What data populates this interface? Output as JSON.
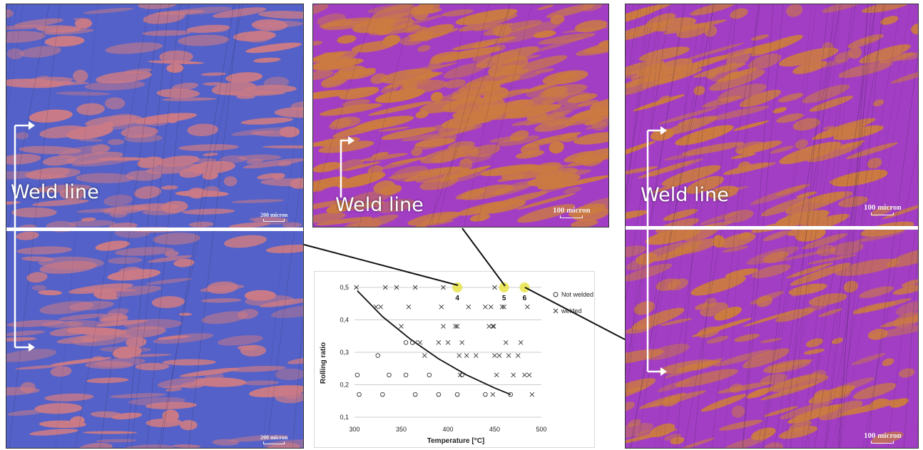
{
  "figure": {
    "weld_label": "Weld line",
    "scale_labels": {
      "left_top": "200 micron",
      "left_bottom": "200 micron",
      "center": "100 micron",
      "right_top": "100 micron",
      "right_bottom": "100 micron"
    },
    "colors": {
      "blue_base": "#5361c8",
      "pink_grain": "#e07f7a",
      "purple_base": "#a23ec4",
      "orange_grain": "#d3862a",
      "highlight": "#e7e23c"
    }
  },
  "chart_data": {
    "type": "scatter",
    "xlabel": "Temperature [°C]",
    "ylabel": "Rolling ratio",
    "xlim": [
      300,
      500
    ],
    "ylim": [
      0.1,
      0.5
    ],
    "xticks": [
      "300",
      "350",
      "400",
      "450",
      "500"
    ],
    "yticks": [
      "0,1",
      "0,2",
      "0,3",
      "0,4",
      "0,5"
    ],
    "grid": "horizontal",
    "legend_position": "right",
    "series": [
      {
        "name": "Not welded",
        "marker": "circle",
        "points": [
          [
            303,
            0.23
          ],
          [
            305,
            0.17
          ],
          [
            325,
            0.29
          ],
          [
            330,
            0.17
          ],
          [
            337,
            0.23
          ],
          [
            355,
            0.23
          ],
          [
            355,
            0.33
          ],
          [
            362,
            0.33
          ],
          [
            365,
            0.17
          ],
          [
            380,
            0.23
          ],
          [
            390,
            0.17
          ],
          [
            410,
            0.17
          ],
          [
            415,
            0.23
          ],
          [
            440,
            0.17
          ],
          [
            467,
            0.17
          ]
        ]
      },
      {
        "name": "welded",
        "marker": "x",
        "points": [
          [
            302,
            0.5
          ],
          [
            323,
            0.44
          ],
          [
            328,
            0.44
          ],
          [
            333,
            0.5
          ],
          [
            345,
            0.5
          ],
          [
            350,
            0.38
          ],
          [
            358,
            0.44
          ],
          [
            365,
            0.5
          ],
          [
            365,
            0.33
          ],
          [
            370,
            0.33
          ],
          [
            375,
            0.29
          ],
          [
            390,
            0.33
          ],
          [
            393,
            0.44
          ],
          [
            395,
            0.38
          ],
          [
            395,
            0.5
          ],
          [
            400,
            0.33
          ],
          [
            408,
            0.38
          ],
          [
            410,
            0.38
          ],
          [
            412,
            0.29
          ],
          [
            413,
            0.23
          ],
          [
            415,
            0.33
          ],
          [
            420,
            0.29
          ],
          [
            422,
            0.44
          ],
          [
            430,
            0.29
          ],
          [
            440,
            0.44
          ],
          [
            444,
            0.38
          ],
          [
            446,
            0.44
          ],
          [
            448,
            0.38
          ],
          [
            449,
            0.38
          ],
          [
            450,
            0.5
          ],
          [
            450,
            0.29
          ],
          [
            452,
            0.23
          ],
          [
            455,
            0.29
          ],
          [
            458,
            0.44
          ],
          [
            460,
            0.44
          ],
          [
            462,
            0.33
          ],
          [
            465,
            0.29
          ],
          [
            470,
            0.23
          ],
          [
            475,
            0.29
          ],
          [
            478,
            0.33
          ],
          [
            482,
            0.23
          ],
          [
            485,
            0.44
          ],
          [
            487,
            0.23
          ],
          [
            490,
            0.17
          ],
          [
            448,
            0.17
          ]
        ]
      }
    ],
    "highlights": [
      {
        "label": "4",
        "x": 410,
        "y": 0.5
      },
      {
        "label": "5",
        "x": 460,
        "y": 0.5
      },
      {
        "label": "6",
        "x": 482,
        "y": 0.5
      }
    ],
    "boundary_curve": [
      [
        303,
        0.49
      ],
      [
        330,
        0.41
      ],
      [
        360,
        0.34
      ],
      [
        390,
        0.28
      ],
      [
        420,
        0.23
      ],
      [
        450,
        0.19
      ],
      [
        467,
        0.17
      ]
    ]
  }
}
